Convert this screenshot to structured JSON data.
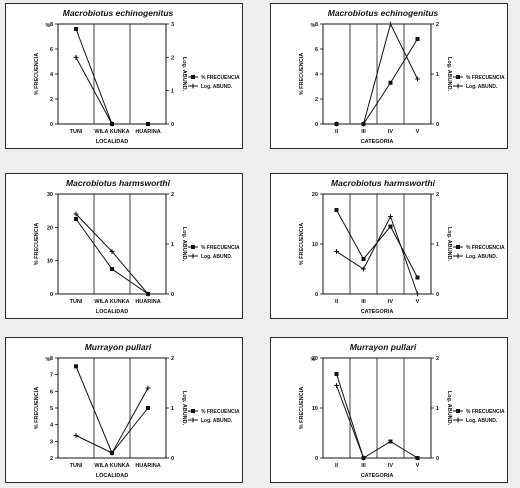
{
  "colors": {
    "ink": "#111111",
    "panel_bg": "#ffffff",
    "page_bg": "#efefef"
  },
  "chart_data": [
    {
      "type": "line",
      "title": "Macrobiotus echinogenitus",
      "xlabel": "LOCALIDAD",
      "ylabel": "% FRECUENCIA",
      "ylabel_top": "%",
      "y2label": "Log. ABUND.",
      "categories": [
        "TUNI",
        "WILA KUNKA",
        "HUARINA"
      ],
      "ylim": [
        0,
        8
      ],
      "yticks": [
        "0",
        "2",
        "4",
        "6",
        "8"
      ],
      "y2lim": [
        0,
        3
      ],
      "y2ticks": [
        "0",
        "1",
        "2",
        "3"
      ],
      "series": [
        {
          "name": "% FRECUENCIA",
          "axis": "left",
          "marker": "square",
          "values": [
            7.6,
            0,
            0
          ]
        },
        {
          "name": "Log. ABUND.",
          "axis": "right",
          "marker": "plus",
          "values": [
            2.0,
            0,
            null
          ]
        }
      ],
      "legend": "right"
    },
    {
      "type": "line",
      "title": "Macrobiotus echinogenitus",
      "xlabel": "CATEGORIA",
      "ylabel": "% FRECUENCIA",
      "ylabel_top": "%",
      "y2label": "Log. ABUND.",
      "categories": [
        "II",
        "III",
        "IV",
        "V"
      ],
      "ylim": [
        0,
        8
      ],
      "yticks": [
        "0",
        "2",
        "4",
        "6",
        "8"
      ],
      "y2lim": [
        0,
        2
      ],
      "y2ticks": [
        "0",
        "1",
        "2"
      ],
      "series": [
        {
          "name": "% FRECUENCIA",
          "axis": "left",
          "marker": "square",
          "values": [
            0,
            0,
            3.3,
            6.8
          ]
        },
        {
          "name": "Log. ABUND.",
          "axis": "right",
          "marker": "plus",
          "values": [
            0,
            0,
            2.0,
            0.9
          ]
        }
      ],
      "legend": "right"
    },
    {
      "type": "line",
      "title": "Macrobiotus harmsworthi",
      "xlabel": "LOCALIDAD",
      "ylabel": "% FRECUENCIA",
      "ylabel_top": "",
      "y2label": "Log. ABUND.",
      "categories": [
        "TUNI",
        "WILA KUNKA",
        "HUARINA"
      ],
      "ylim": [
        0,
        30
      ],
      "yticks": [
        "0",
        "10",
        "20",
        "30"
      ],
      "y2lim": [
        0,
        2
      ],
      "y2ticks": [
        "0",
        "1",
        "2"
      ],
      "series": [
        {
          "name": "% FRECUENCIA",
          "axis": "left",
          "marker": "square",
          "values": [
            22.5,
            7.5,
            0
          ]
        },
        {
          "name": "Log. ABUND.",
          "axis": "right",
          "marker": "plus",
          "values": [
            1.6,
            0.85,
            0
          ]
        }
      ],
      "legend": "right"
    },
    {
      "type": "line",
      "title": "Macrobiotus harmsworthi",
      "xlabel": "CATEGORIA",
      "ylabel": "% FRECUENCIA",
      "ylabel_top": "",
      "y2label": "Log. ABUND.",
      "categories": [
        "II",
        "III",
        "IV",
        "V"
      ],
      "ylim": [
        0,
        20
      ],
      "yticks": [
        "0",
        "10",
        "20"
      ],
      "y2lim": [
        0,
        2
      ],
      "y2ticks": [
        "0",
        "1",
        "2"
      ],
      "series": [
        {
          "name": "% FRECUENCIA",
          "axis": "left",
          "marker": "square",
          "values": [
            16.8,
            7.0,
            13.5,
            3.3
          ]
        },
        {
          "name": "Log. ABUND.",
          "axis": "right",
          "marker": "plus",
          "values": [
            0.85,
            0.5,
            1.55,
            0
          ]
        }
      ],
      "legend": "right"
    },
    {
      "type": "line",
      "title": "Murrayon pullari",
      "xlabel": "LOCALIDAD",
      "ylabel": "% FRECUENCIA",
      "ylabel_top": "%",
      "y2label": "Log. ABUND.",
      "categories": [
        "TUNI",
        "WILA KUNKA",
        "HUARINA"
      ],
      "ylim": [
        2,
        8
      ],
      "yticks": [
        "2",
        "3",
        "4",
        "5",
        "6",
        "7",
        "8"
      ],
      "y2lim": [
        0,
        2
      ],
      "y2ticks": [
        "0",
        "1",
        "2"
      ],
      "series": [
        {
          "name": "% FRECUENCIA",
          "axis": "left",
          "marker": "square",
          "values": [
            7.5,
            2.3,
            5.0
          ]
        },
        {
          "name": "Log. ABUND.",
          "axis": "right",
          "marker": "plus",
          "values": [
            0.45,
            0.1,
            1.4
          ]
        }
      ],
      "legend": "right"
    },
    {
      "type": "line",
      "title": "Murrayon pullari",
      "xlabel": "CATEGORIA",
      "ylabel": "% FRECUENCIA",
      "ylabel_top": "%",
      "y2label": "Log. ABUND.",
      "categories": [
        "II",
        "III",
        "IV",
        "V"
      ],
      "ylim": [
        0,
        20
      ],
      "yticks": [
        "0",
        "10",
        "20"
      ],
      "y2lim": [
        0,
        2
      ],
      "y2ticks": [
        "0",
        "1",
        "2"
      ],
      "series": [
        {
          "name": "% FRECUENCIA",
          "axis": "left",
          "marker": "square",
          "values": [
            16.8,
            0,
            3.3,
            0
          ]
        },
        {
          "name": "Log. ABUND.",
          "axis": "right",
          "marker": "plus",
          "values": [
            1.45,
            0,
            null,
            null
          ]
        }
      ],
      "legend": "right"
    }
  ]
}
